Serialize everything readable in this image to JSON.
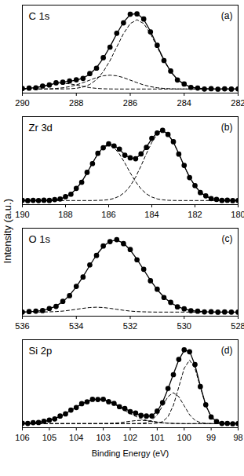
{
  "chart_data": [
    {
      "type": "line",
      "title": "C 1s",
      "annotations": [
        "(a)"
      ],
      "x": [
        290,
        289.75,
        289.5,
        289.25,
        289,
        288.75,
        288.5,
        288.25,
        288,
        287.75,
        287.5,
        287.25,
        287,
        286.75,
        286.5,
        286.25,
        286,
        285.75,
        285.5,
        285.25,
        285,
        284.75,
        284.5,
        284.25,
        284,
        283.75,
        283.5,
        283.25,
        283,
        282.75,
        282.5,
        282.25,
        282
      ],
      "xlim": [
        290,
        282
      ],
      "xticks": [
        290,
        288,
        286,
        284,
        282
      ],
      "ylim": [
        0,
        108
      ],
      "grid": false,
      "tick_labels": "x",
      "series": [
        {
          "type": "line",
          "line_style": "dashed",
          "color": "#000000",
          "values": [
            5,
            5,
            5,
            5,
            5,
            5,
            5.1,
            5.3,
            5.9,
            7.4,
            10.6,
            16.5,
            26.2,
            39.9,
            56.6,
            73,
            85.4,
            90,
            85.4,
            73,
            56.6,
            39.9,
            26.2,
            16.5,
            10.6,
            7.4,
            5.9,
            5.3,
            5.1,
            5,
            5,
            5,
            5
          ]
        },
        {
          "type": "line",
          "line_style": "dashed",
          "color": "#000000",
          "values": [
            5,
            5,
            5.1,
            5.1,
            5.3,
            5.7,
            6.5,
            7.9,
            10,
            12.8,
            15.9,
            19,
            21.2,
            22,
            21.2,
            19,
            15.9,
            12.8,
            10,
            7.9,
            6.5,
            5.7,
            5.3,
            5.1,
            5.1,
            5,
            5,
            5,
            5,
            5,
            5,
            5,
            5
          ]
        },
        {
          "type": "line",
          "line_style": "dashed",
          "color": "#000000",
          "values": [
            5.3,
            5.8,
            6.7,
            8.2,
            9.9,
            11.4,
            12,
            11.4,
            9.9,
            8.2,
            6.7,
            5.8,
            5.3,
            5.1,
            5,
            5,
            5,
            5,
            5,
            5,
            5,
            5,
            5,
            5,
            5,
            5,
            5,
            5,
            5,
            5,
            5,
            5,
            5
          ]
        },
        {
          "type": "line",
          "line_style": "solid",
          "color": "#000000",
          "values": [
            5.3,
            5.8,
            6.8,
            8.3,
            10.2,
            12.1,
            13.6,
            14.6,
            15.8,
            18.4,
            23.2,
            31.3,
            42.7,
            57,
            72.8,
            87,
            96.3,
            97.8,
            90.4,
            75.9,
            58.1,
            40.6,
            26.5,
            16.6,
            10.7,
            7.4,
            5.9,
            5.3,
            5.1,
            5,
            5,
            5,
            5
          ]
        },
        {
          "type": "scatter",
          "marker": "circle",
          "color": "#000000",
          "values": [
            5.6,
            6.1,
            6.5,
            8.7,
            10.0,
            12.6,
            13.3,
            14.9,
            16.3,
            18.0,
            23.9,
            30.6,
            43.5,
            56.4,
            73.5,
            86.2,
            96.8,
            97.2,
            91.0,
            75.1,
            58.7,
            40.0,
            27.1,
            16.1,
            11.2,
            7.0,
            6.2,
            5.0,
            5.4,
            4.8,
            5.2,
            4.9,
            5.1
          ]
        }
      ]
    },
    {
      "type": "line",
      "title": "Zr 3d",
      "annotations": [
        "(b)"
      ],
      "x": [
        190,
        189.75,
        189.5,
        189.25,
        189,
        188.75,
        188.5,
        188.25,
        188,
        187.75,
        187.5,
        187.25,
        187,
        186.75,
        186.5,
        186.25,
        186,
        185.75,
        185.5,
        185.25,
        185,
        184.75,
        184.5,
        184.25,
        184,
        183.75,
        183.5,
        183.25,
        183,
        182.75,
        182.5,
        182.25,
        182,
        181.75,
        181.5,
        181.25,
        181,
        180.75,
        180.5,
        180.25,
        180
      ],
      "xlim": [
        190,
        180
      ],
      "xticks": [
        190,
        188,
        186,
        184,
        182,
        180
      ],
      "ylim": [
        0,
        108
      ],
      "grid": false,
      "tick_labels": "x",
      "series": [
        {
          "type": "line",
          "line_style": "dashed",
          "color": "#000000",
          "values": [
            5,
            5,
            5,
            5,
            5.1,
            5.3,
            5.9,
            7,
            9.3,
            13.2,
            19.3,
            28.1,
            39,
            51.1,
            62.2,
            70.1,
            73,
            70.1,
            62.2,
            51.1,
            39,
            28.1,
            19.3,
            13.2,
            9.3,
            7,
            5.9,
            5.3,
            5.1,
            5,
            5,
            5,
            5,
            5,
            5,
            5,
            5,
            5,
            5,
            5,
            5
          ]
        },
        {
          "type": "line",
          "line_style": "dashed",
          "color": "#000000",
          "values": [
            5,
            5,
            5,
            5,
            5,
            5,
            5,
            5,
            5,
            5,
            5,
            5,
            5,
            5,
            5.2,
            5.4,
            6.1,
            7.6,
            10.4,
            15.2,
            22.9,
            33.8,
            47.5,
            62.6,
            76.5,
            86.4,
            90,
            86.4,
            76.5,
            62.6,
            47.5,
            33.8,
            22.9,
            15.2,
            10.4,
            7.6,
            6.1,
            5.4,
            5.2,
            5,
            5
          ]
        },
        {
          "type": "line",
          "line_style": "solid",
          "color": "#000000",
          "values": [
            5,
            5,
            5,
            5,
            5.1,
            5.3,
            5.9,
            7,
            9.3,
            13.2,
            19.3,
            28.1,
            39,
            51.1,
            62.4,
            70.5,
            74.1,
            72.7,
            67.6,
            61.3,
            56.9,
            56.9,
            61.8,
            70.8,
            80.8,
            88.4,
            90.9,
            86.7,
            76.6,
            62.6,
            47.5,
            33.8,
            22.9,
            15.2,
            10.4,
            7.6,
            6.1,
            5.4,
            5.2,
            5,
            5
          ]
        },
        {
          "type": "scatter",
          "marker": "circle",
          "color": "#000000",
          "values": [
            5.3,
            4.9,
            5.2,
            5.0,
            5.4,
            5.1,
            6.2,
            6.8,
            9.7,
            12.8,
            19.9,
            27.5,
            39.6,
            50.4,
            63.0,
            69.8,
            74.6,
            72.1,
            68.2,
            60.7,
            57.4,
            56.3,
            62.3,
            70.2,
            81.4,
            87.9,
            91.2,
            86.1,
            77.2,
            62.0,
            48.1,
            33.2,
            23.4,
            14.8,
            10.8,
            7.3,
            6.3,
            5.1,
            5.4,
            4.9,
            5.1
          ]
        }
      ]
    },
    {
      "type": "line",
      "title": "O 1s",
      "annotations": [
        "(c)"
      ],
      "x": [
        536,
        535.75,
        535.5,
        535.25,
        535,
        534.75,
        534.5,
        534.25,
        534,
        533.75,
        533.5,
        533.25,
        533,
        532.75,
        532.5,
        532.25,
        532,
        531.75,
        531.5,
        531.25,
        531,
        530.75,
        530.5,
        530.25,
        530,
        529.75,
        529.5,
        529.25,
        529,
        528.75,
        528.5,
        528.25,
        528
      ],
      "xlim": [
        536,
        528
      ],
      "xticks": [
        536,
        534,
        532,
        530,
        528
      ],
      "ylim": [
        0,
        108
      ],
      "grid": false,
      "tick_labels": "x",
      "series": [
        {
          "type": "line",
          "line_style": "dashed",
          "color": "#000000",
          "values": [
            5,
            5,
            5,
            5.1,
            5.3,
            5.6,
            6.2,
            7.2,
            8.4,
            9.6,
            10.6,
            11,
            10.6,
            9.6,
            8.4,
            7.2,
            6.2,
            5.6,
            5.3,
            5.1,
            5,
            5,
            5,
            5,
            5,
            5,
            5,
            5,
            5,
            5,
            5,
            5,
            5
          ]
        },
        {
          "type": "line",
          "line_style": "solid",
          "color": "#000000",
          "values": [
            5.2,
            5.4,
            5.9,
            7.1,
            9,
            12.4,
            17.7,
            25.6,
            36,
            48.5,
            62.2,
            75.2,
            85.6,
            92,
            93.4,
            89.6,
            81.2,
            69.8,
            56.9,
            44,
            32.6,
            23.4,
            16.5,
            11.8,
            8.7,
            7,
            5.9,
            5.4,
            5.2,
            5,
            5,
            5,
            5
          ]
        },
        {
          "type": "scatter",
          "marker": "circle",
          "color": "#000000",
          "values": [
            5.0,
            5.6,
            6.2,
            6.8,
            9.4,
            12.0,
            18.2,
            25.1,
            36.6,
            48.0,
            62.9,
            74.6,
            86.1,
            91.5,
            93.9,
            89.0,
            81.8,
            69.2,
            57.5,
            43.5,
            33.1,
            22.9,
            16.9,
            11.4,
            9.0,
            6.7,
            6.1,
            5.2,
            5.4,
            4.9,
            5.1,
            5.0,
            4.9
          ]
        }
      ]
    },
    {
      "type": "line",
      "title": "Si 2p",
      "annotations": [
        "(d)"
      ],
      "xlabel": "Binding Energy (eV)",
      "x": [
        106,
        105.8,
        105.6,
        105.4,
        105.2,
        105,
        104.8,
        104.6,
        104.4,
        104.2,
        104,
        103.8,
        103.6,
        103.4,
        103.2,
        103,
        102.8,
        102.6,
        102.4,
        102.2,
        102,
        101.8,
        101.6,
        101.4,
        101.2,
        101,
        100.8,
        100.6,
        100.4,
        100.2,
        100,
        99.8,
        99.6,
        99.4,
        99.2,
        99,
        98.8,
        98.6,
        98.4,
        98.2,
        98
      ],
      "xlim": [
        106,
        98
      ],
      "xticks": [
        106,
        105,
        104,
        103,
        102,
        101,
        100,
        99,
        98
      ],
      "ylim": [
        0,
        108
      ],
      "grid": false,
      "tick_labels": "x",
      "series": [
        {
          "type": "line",
          "line_style": "dashed",
          "color": "#000000",
          "values": [
            5.2,
            5.5,
            5.9,
            6.5,
            7.6,
            9.1,
            11.2,
            13.9,
            17.3,
            21.2,
            25.2,
            29,
            32.2,
            34.3,
            35,
            34.3,
            32.2,
            29,
            25.2,
            21.2,
            17.3,
            13.9,
            11.2,
            9.1,
            7.6,
            6.5,
            5.9,
            5.5,
            5.2,
            5.1,
            5,
            5,
            5,
            5,
            5,
            5,
            5,
            5,
            5,
            5,
            5
          ]
        },
        {
          "type": "line",
          "line_style": "dashed",
          "color": "#000000",
          "values": [
            5,
            5,
            5,
            5,
            5,
            5,
            5,
            5,
            5,
            5,
            5,
            5,
            5,
            5,
            5,
            5.1,
            5.2,
            5.5,
            6.1,
            7,
            7.9,
            8.7,
            9,
            8.7,
            7.9,
            7,
            6.1,
            5.5,
            5.2,
            5.1,
            5,
            5,
            5,
            5,
            5,
            5,
            5,
            5,
            5,
            5,
            5
          ]
        },
        {
          "type": "line",
          "line_style": "dashed",
          "color": "#000000",
          "values": [
            5,
            5,
            5,
            5,
            5,
            5,
            5,
            5,
            5,
            5,
            5,
            5,
            5,
            5,
            5,
            5,
            5,
            5,
            5,
            5,
            5,
            5,
            5.3,
            6.2,
            9.1,
            15.9,
            26.9,
            38.1,
            43,
            38.1,
            26.9,
            15.9,
            9.1,
            6.2,
            5.3,
            5,
            5,
            5,
            5,
            5,
            5
          ]
        },
        {
          "type": "line",
          "line_style": "dashed",
          "color": "#000000",
          "values": [
            5,
            5,
            5,
            5,
            5,
            5,
            5,
            5,
            5,
            5,
            5,
            5,
            5,
            5,
            5,
            5,
            5,
            5,
            5,
            5,
            5,
            5,
            5,
            5,
            5.1,
            5.5,
            7.4,
            13.5,
            27.4,
            49.9,
            72.9,
            83,
            72.9,
            49.9,
            27.4,
            13.5,
            7.4,
            5.5,
            5.1,
            5,
            5
          ]
        },
        {
          "type": "line",
          "line_style": "solid",
          "color": "#000000",
          "values": [
            5.2,
            5.5,
            5.9,
            6.5,
            7.6,
            9.1,
            11.2,
            13.9,
            17.3,
            21.2,
            25.2,
            29,
            32.2,
            34.3,
            35,
            34.4,
            32.4,
            29.5,
            26.3,
            23.2,
            20.2,
            17.6,
            15.5,
            14,
            14.7,
            19.9,
            31.3,
            47.6,
            65.8,
            83.2,
            94.8,
            93.9,
            77,
            51.1,
            27.7,
            13.5,
            7.4,
            5.5,
            5.1,
            5,
            5
          ]
        },
        {
          "type": "scatter",
          "marker": "circle",
          "color": "#000000",
          "values": [
            5.5,
            5.2,
            6.2,
            6.3,
            7.9,
            9.4,
            10.8,
            14.3,
            16.9,
            21.6,
            24.8,
            29.5,
            31.8,
            34.8,
            34.6,
            34.9,
            31.9,
            29.9,
            25.8,
            23.6,
            19.7,
            17.9,
            15.1,
            14.3,
            14.4,
            20.3,
            30.8,
            48.2,
            65.1,
            83.8,
            95.6,
            93.2,
            77.6,
            50.5,
            28.1,
            13.1,
            7.7,
            5.2,
            5.3,
            4.8,
            5.1
          ]
        }
      ]
    }
  ],
  "ylabel": "Intensity (a.u.)"
}
